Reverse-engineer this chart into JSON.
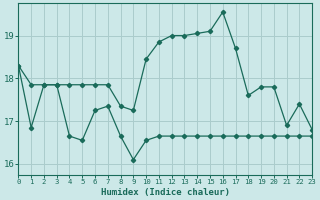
{
  "xlabel": "Humidex (Indice chaleur)",
  "x": [
    0,
    1,
    2,
    3,
    4,
    5,
    6,
    7,
    8,
    9,
    10,
    11,
    12,
    13,
    14,
    15,
    16,
    17,
    18,
    19,
    20,
    21,
    22,
    23
  ],
  "line1": [
    18.3,
    16.85,
    17.85,
    17.85,
    16.65,
    16.55,
    17.25,
    17.35,
    16.65,
    16.1,
    16.55,
    16.65,
    16.65,
    16.65,
    16.65,
    16.65,
    16.65,
    16.65,
    16.65,
    16.65,
    16.65,
    16.65,
    16.65,
    16.65
  ],
  "line2": [
    18.3,
    17.85,
    17.85,
    17.85,
    17.85,
    17.85,
    17.85,
    17.85,
    17.35,
    17.25,
    18.45,
    18.85,
    19.0,
    19.0,
    19.05,
    19.1,
    19.55,
    18.7,
    17.6,
    17.8,
    17.8,
    16.9,
    17.4,
    16.8
  ],
  "bg_color": "#cce8e8",
  "grid_color": "#aacccc",
  "line_color": "#1a6b5a",
  "xlim": [
    0,
    23
  ],
  "ylim": [
    15.75,
    19.75
  ],
  "yticks": [
    16,
    17,
    18,
    19
  ],
  "xticks": [
    0,
    1,
    2,
    3,
    4,
    5,
    6,
    7,
    8,
    9,
    10,
    11,
    12,
    13,
    14,
    15,
    16,
    17,
    18,
    19,
    20,
    21,
    22,
    23
  ],
  "xticklabels": [
    "0",
    "1",
    "2",
    "3",
    "4",
    "5",
    "6",
    "7",
    "8",
    "9",
    "10",
    "11",
    "12",
    "13",
    "14",
    "15",
    "16",
    "17",
    "18",
    "19",
    "20",
    "21",
    "22",
    "23"
  ]
}
